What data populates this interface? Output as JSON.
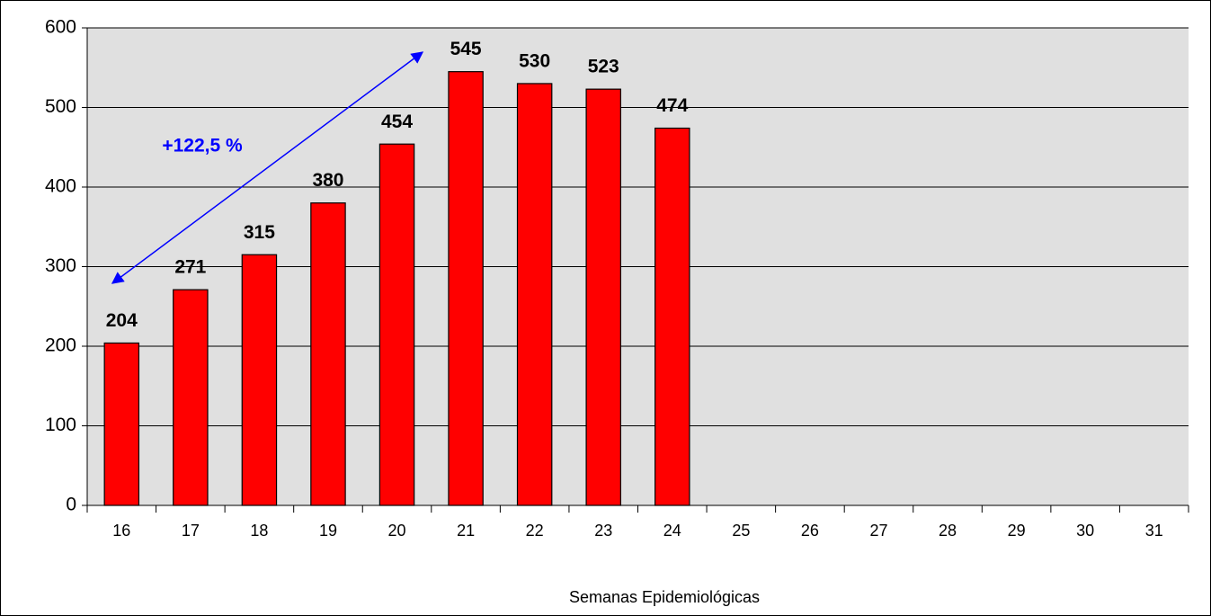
{
  "chart_data": {
    "type": "bar",
    "categories": [
      "16",
      "17",
      "18",
      "19",
      "20",
      "21",
      "22",
      "23",
      "24",
      "25",
      "26",
      "27",
      "28",
      "29",
      "30",
      "31"
    ],
    "values": [
      204,
      271,
      315,
      380,
      454,
      545,
      530,
      523,
      474,
      null,
      null,
      null,
      null,
      null,
      null,
      null
    ],
    "color": "#ff0000",
    "ylim": [
      0,
      600
    ],
    "yticks": [
      0,
      100,
      200,
      300,
      400,
      500,
      600
    ],
    "grid": true,
    "x_label": "Semanas Epidemiológicas",
    "annotation": "+122,5 %"
  }
}
